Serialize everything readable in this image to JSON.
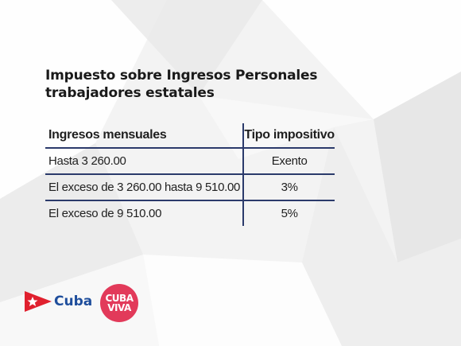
{
  "slide": {
    "title_line1": "Impuesto sobre Ingresos Personales",
    "title_line2": "trabajadores estatales"
  },
  "table": {
    "headers": [
      "Ingresos mensuales",
      "Tipo impositivo"
    ],
    "rows": [
      [
        "Hasta 3 260.00",
        "Exento"
      ],
      [
        "El exceso de 3 260.00 hasta 9 510.00",
        "3%"
      ],
      [
        "El exceso de 9 510.00",
        "5%"
      ]
    ]
  },
  "logos": {
    "cuba_text": "Cuba",
    "cuba_viva_line1": "CUBA",
    "cuba_viva_line2": "VIVA"
  },
  "colors": {
    "table_rule": "#2b3a6b",
    "cuba_blue": "#1f4e9c",
    "cuba_red": "#e0202e",
    "viva_pink": "#e23a5a"
  }
}
